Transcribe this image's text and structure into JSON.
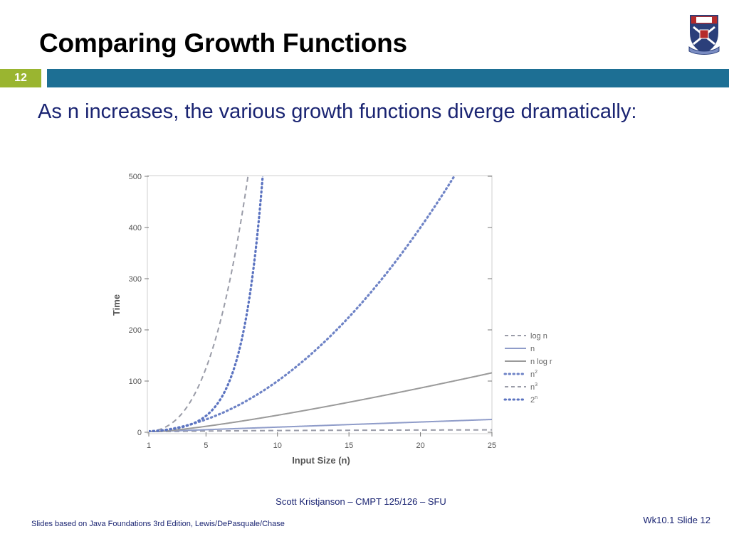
{
  "slide": {
    "title": "Comparing Growth Functions",
    "number": "12",
    "body": "As n increases, the various growth functions diverge dramatically:",
    "footer_author": "Scott Kristjanson – CMPT 125/126 – SFU",
    "footer_slide": "Wk10.1 Slide 12",
    "footer_source": "Slides based on Java Foundations 3rd Edition, Lewis/DePasquale/Chase",
    "accent_band_color": "#1d6f94",
    "number_box_color": "#9ab530",
    "crest_icon": "university-crest-icon"
  },
  "chart_data": {
    "type": "line",
    "title": "",
    "xlabel": "Input Size (n)",
    "ylabel": "Time",
    "xlim": [
      1,
      25
    ],
    "ylim": [
      0,
      500
    ],
    "x_ticks": [
      1,
      5,
      10,
      15,
      20,
      25
    ],
    "y_ticks": [
      0,
      100,
      200,
      300,
      400,
      500
    ],
    "grid": false,
    "legend_position": "right",
    "series": [
      {
        "name": "log n",
        "base": "",
        "formula": "log2",
        "style": "dashed",
        "color": "#9a9ca8"
      },
      {
        "name": "n",
        "base": "",
        "formula": "n",
        "style": "solid",
        "color": "#8f9cc9"
      },
      {
        "name": "n log r",
        "base": "",
        "formula": "nlogn",
        "style": "solid",
        "color": "#9a9a9a"
      },
      {
        "name": "",
        "base": "n",
        "exp": "2",
        "formula": "n2",
        "style": "dotted",
        "color": "#6e83c6"
      },
      {
        "name": "",
        "base": "n",
        "exp": "3",
        "formula": "n3",
        "style": "dashed",
        "color": "#9a9ca8"
      },
      {
        "name": "",
        "base": "2",
        "exp": "n",
        "formula": "2n",
        "style": "dotted",
        "color": "#5b73c0"
      }
    ]
  }
}
